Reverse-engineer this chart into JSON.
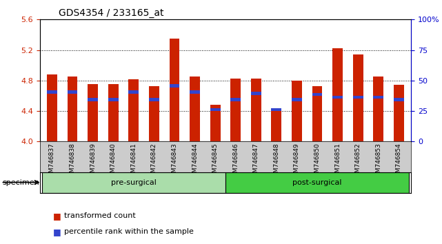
{
  "title": "GDS4354 / 233165_at",
  "samples": [
    "GSM746837",
    "GSM746838",
    "GSM746839",
    "GSM746840",
    "GSM746841",
    "GSM746842",
    "GSM746843",
    "GSM746844",
    "GSM746845",
    "GSM746846",
    "GSM746847",
    "GSM746848",
    "GSM746849",
    "GSM746850",
    "GSM746851",
    "GSM746852",
    "GSM746853",
    "GSM746854"
  ],
  "red_values": [
    4.88,
    4.85,
    4.75,
    4.75,
    4.82,
    4.73,
    5.35,
    4.85,
    4.48,
    4.83,
    4.83,
    4.43,
    4.8,
    4.73,
    5.22,
    5.14,
    4.85,
    4.74
  ],
  "blue_values": [
    4.65,
    4.65,
    4.55,
    4.55,
    4.65,
    4.55,
    4.73,
    4.65,
    4.42,
    4.55,
    4.63,
    4.42,
    4.55,
    4.62,
    4.58,
    4.58,
    4.58,
    4.55
  ],
  "ylim_left": [
    4.0,
    5.6
  ],
  "ylim_right": [
    0,
    100
  ],
  "yticks_left": [
    4.0,
    4.4,
    4.8,
    5.2,
    5.6
  ],
  "yticks_right": [
    0,
    25,
    50,
    75,
    100
  ],
  "ytick_labels_right": [
    "0",
    "25",
    "50",
    "75",
    "100%"
  ],
  "bar_color": "#cc2200",
  "blue_color": "#3344cc",
  "groups": [
    {
      "label": "pre-surgical",
      "start": 0,
      "end": 8,
      "color": "#aaddaa"
    },
    {
      "label": "post-surgical",
      "start": 9,
      "end": 17,
      "color": "#44cc44"
    }
  ],
  "legend_items": [
    {
      "label": "transformed count",
      "color": "#cc2200"
    },
    {
      "label": "percentile rank within the sample",
      "color": "#3344cc"
    }
  ],
  "specimen_label": "specimen",
  "plot_bg": "#ffffff",
  "tick_label_area_color": "#cccccc"
}
